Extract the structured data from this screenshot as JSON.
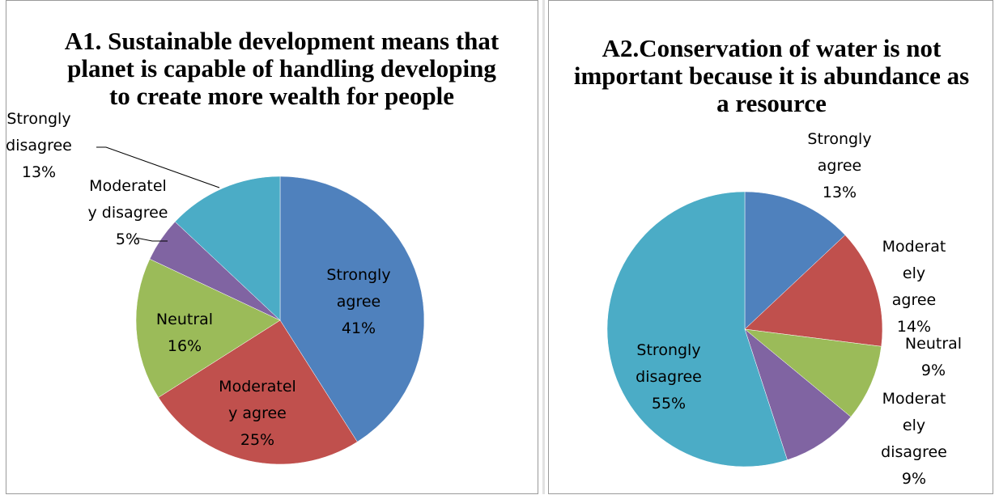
{
  "chart_data": [
    {
      "type": "pie",
      "title": "A1. Sustainable development means that planet is capable of handling developing to create more wealth for people",
      "categories": [
        "Strongly agree",
        "Moderately agree",
        "Neutral",
        "Moderately disagree",
        "Strongly disagree"
      ],
      "values": [
        41,
        25,
        16,
        5,
        13
      ],
      "labels": [
        [
          "Strongly",
          "agree",
          "41%"
        ],
        [
          "Moderatel",
          "y agree",
          "25%"
        ],
        [
          "Neutral",
          "16%"
        ],
        [
          "Moderatel",
          "y disagree",
          "5%"
        ],
        [
          "Strongly",
          "disagree",
          "13%"
        ]
      ],
      "colors": [
        "#4F81BD",
        "#C0504D",
        "#9BBB59",
        "#8064A2",
        "#4BACC6"
      ],
      "legend": "none"
    },
    {
      "type": "pie",
      "title": "A2.Conservation of water is not important because it is abundance as a resource",
      "categories": [
        "Strongly agree",
        "Moderately agree",
        "Neutral",
        "Moderately disagree",
        "Strongly disagree"
      ],
      "values": [
        13,
        14,
        9,
        9,
        55
      ],
      "labels": [
        [
          "Strongly",
          "agree",
          "13%"
        ],
        [
          "Moderat",
          "ely",
          "agree",
          "14%"
        ],
        [
          "Neutral",
          "9%"
        ],
        [
          "Moderat",
          "ely",
          "disagree",
          "9%"
        ],
        [
          "Strongly",
          "disagree",
          "55%"
        ]
      ],
      "colors": [
        "#4F81BD",
        "#C0504D",
        "#9BBB59",
        "#8064A2",
        "#4BACC6"
      ],
      "legend": "none"
    }
  ]
}
